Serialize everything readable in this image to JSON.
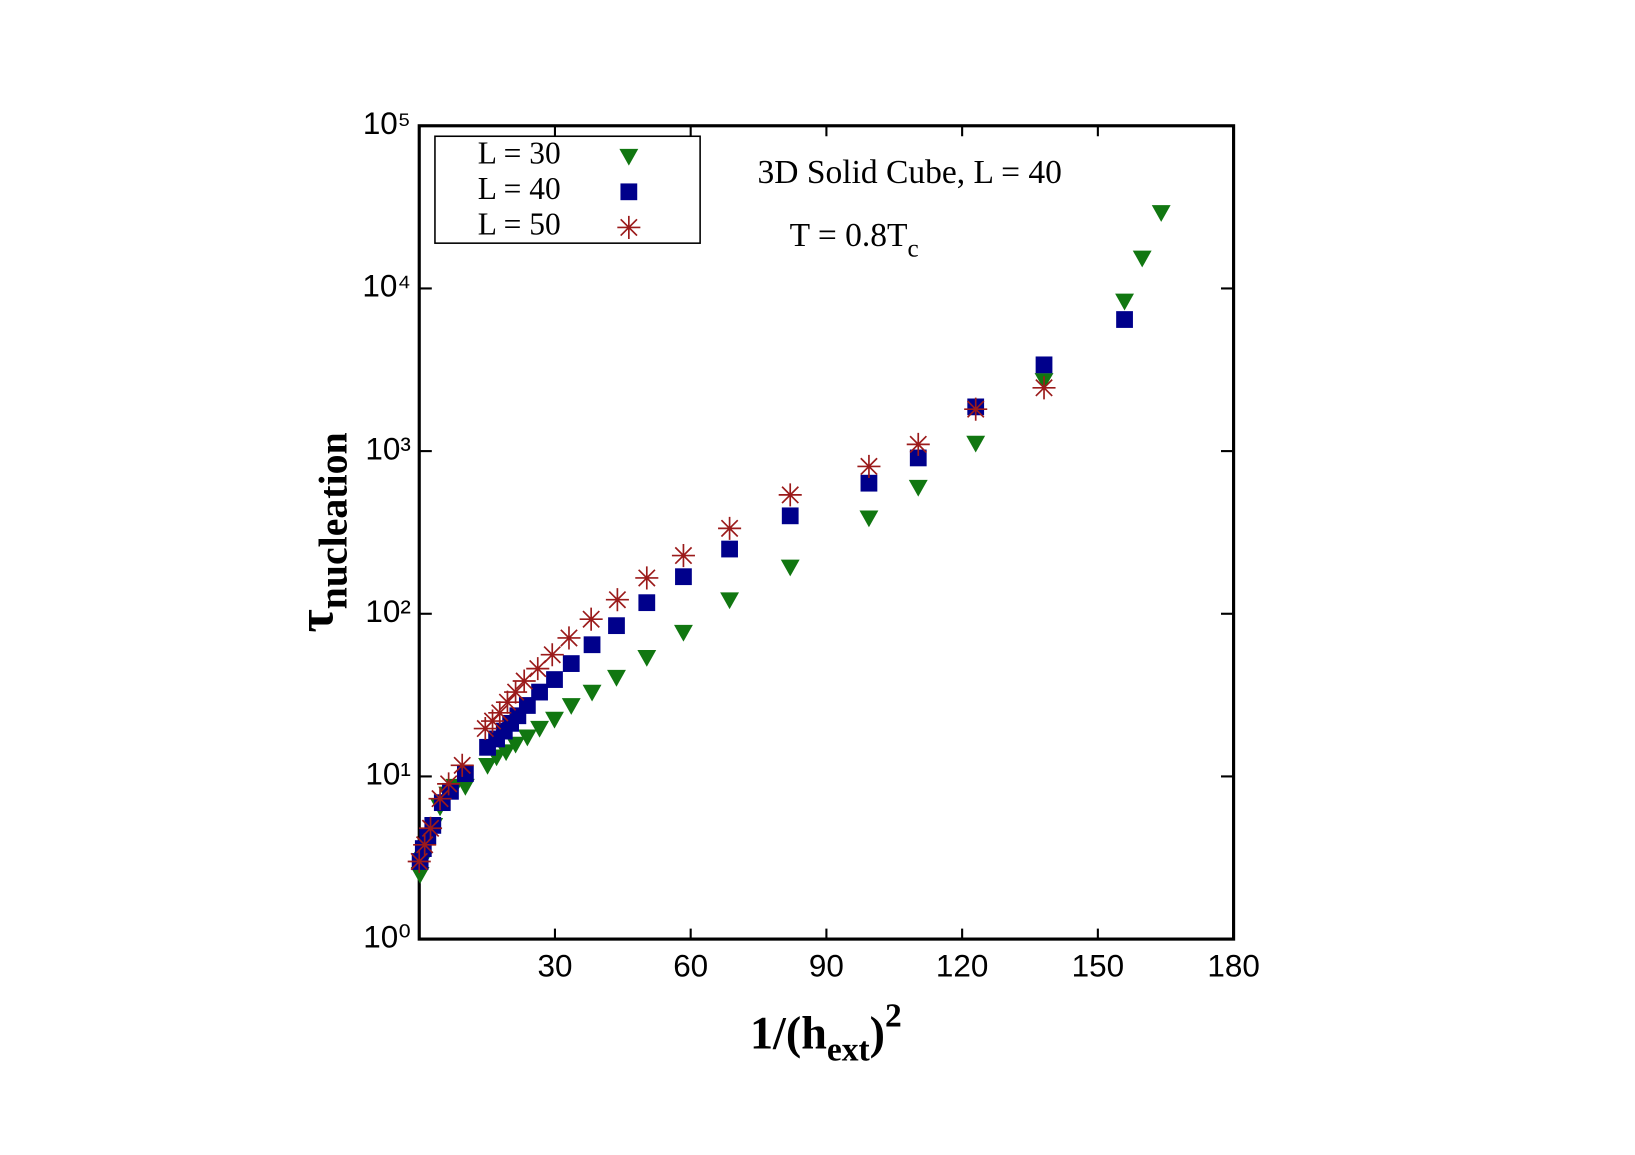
{
  "chart_data": {
    "type": "scatter",
    "x_label": [
      "1/(h",
      "ext",
      ")",
      "2"
    ],
    "y_label": [
      "τ",
      "nucleation"
    ],
    "annotations": [
      [
        "3D Solid Cube, L = 40"
      ],
      [
        "T = 0.8T",
        "c"
      ]
    ],
    "log_y": true,
    "legend": "top-left",
    "xlim": [
      0,
      180
    ],
    "xticks": [
      30,
      60,
      90,
      120,
      150,
      180
    ],
    "ylim": [
      1,
      100000
    ],
    "yticks": [
      {
        "value": 1,
        "label": "10⁰"
      },
      {
        "value": 10,
        "label": "10¹"
      },
      {
        "value": 100,
        "label": "10²"
      },
      {
        "value": 1000,
        "label": "10³"
      },
      {
        "value": 10000,
        "label": "10⁴"
      },
      {
        "value": 100000,
        "label": "10⁵"
      }
    ],
    "series": [
      {
        "name": "L = 30",
        "color": "#117711",
        "marker": "triangle-down",
        "x": [
          0.2,
          0.9,
          2.1,
          3.2,
          4.6,
          6.3,
          7.9,
          10.2,
          15.1,
          17.1,
          19.2,
          21.3,
          23.9,
          26.6,
          29.9,
          33.6,
          38.2,
          43.6,
          50.3,
          58.4,
          68.6,
          82.0,
          99.4,
          110.3,
          123.0,
          138.1,
          155.9,
          159.8,
          164.0
        ],
        "values": [
          2.5,
          3.1,
          4.2,
          5.0,
          6.5,
          7.8,
          8.7,
          8.7,
          11.7,
          13.2,
          14.2,
          15.8,
          17.5,
          19.8,
          22.5,
          27.3,
          33,
          40.7,
          54,
          77,
          122,
          194,
          389,
          600,
          1120,
          2720,
          8370,
          15400,
          29300
        ]
      },
      {
        "name": "L = 40",
        "color": "#00008b",
        "marker": "square",
        "x": [
          0.2,
          0.9,
          1.9,
          3.0,
          5.1,
          6.9,
          10.2,
          15.1,
          17.1,
          18.8,
          20.2,
          21.8,
          23.9,
          26.6,
          29.9,
          33.6,
          38.2,
          43.6,
          50.3,
          58.4,
          68.6,
          82.0,
          99.4,
          110.3,
          123.0,
          138.1,
          155.9
        ],
        "values": [
          3.0,
          3.6,
          4.3,
          5.0,
          6.9,
          8.1,
          10.4,
          15.1,
          17.0,
          19.0,
          21.2,
          23.6,
          27.3,
          33,
          39.4,
          49.4,
          64.5,
          84.5,
          117,
          169,
          250,
          400,
          635,
          908,
          1870,
          3390,
          6440
        ]
      },
      {
        "name": "L = 50",
        "color": "#9b1b1b",
        "marker": "asterisk",
        "x": [
          0.0,
          1.2,
          2.5,
          4.6,
          6.5,
          9.5,
          14.6,
          16.2,
          17.8,
          19.5,
          21.3,
          23.2,
          26.2,
          29.4,
          33.1,
          38.0,
          43.8,
          50.3,
          58.4,
          68.6,
          82.0,
          99.4,
          110.3,
          123.0,
          138.1
        ],
        "values": [
          3.0,
          3.8,
          4.8,
          7.3,
          9.0,
          11.7,
          19.7,
          21.9,
          24.6,
          28.6,
          33,
          38.6,
          46,
          56,
          71,
          92.6,
          122,
          166,
          228,
          335,
          538,
          805,
          1100,
          1810,
          2450
        ]
      }
    ]
  }
}
